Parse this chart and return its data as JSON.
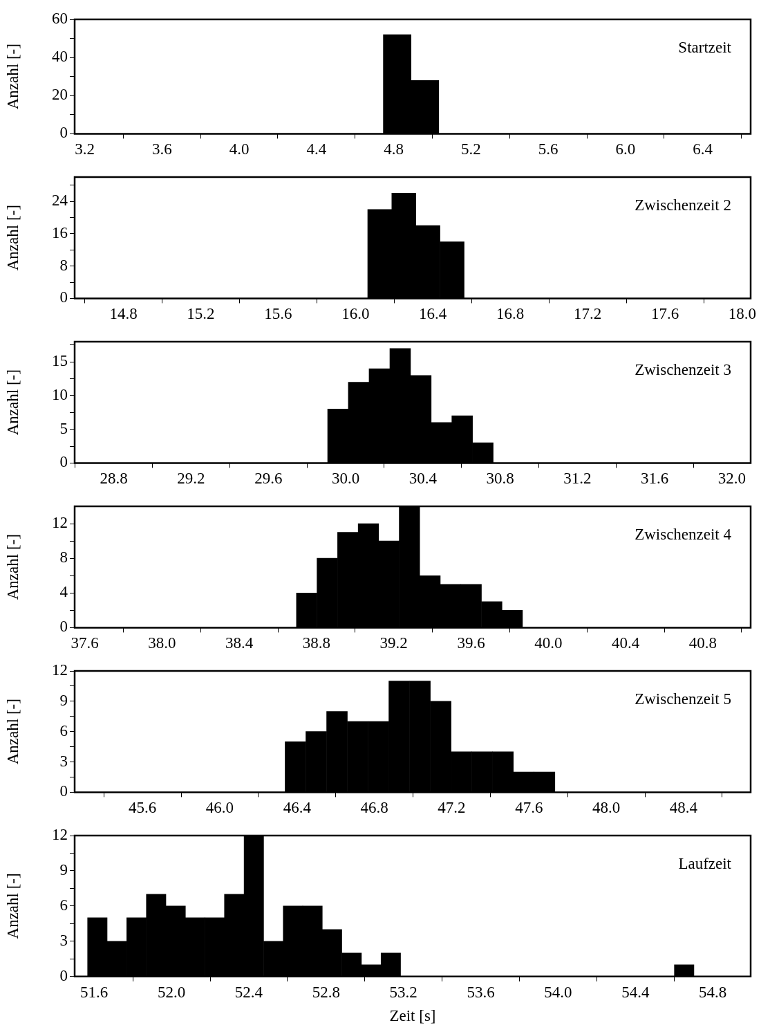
{
  "chart_data": [
    {
      "type": "histogram",
      "ylabel": "Anzahl [-]",
      "annotations": [
        "Startzeit"
      ],
      "color": "#000000",
      "bins": [
        4.746,
        4.89,
        5.033
      ],
      "values": [
        52,
        28
      ],
      "xlim": [
        3.148,
        6.648
      ],
      "xticks": [
        3.2,
        3.6,
        {
          "value": 4,
          "label": "4.0"
        },
        4.4,
        4.8,
        5.2,
        5.6,
        {
          "value": 6,
          "label": "6.0"
        },
        6.4
      ],
      "ylim": [
        0,
        60
      ],
      "yticks": [
        0,
        {
          "value": 10,
          "label": null
        },
        20,
        {
          "value": 30,
          "label": null
        },
        40,
        {
          "value": 50,
          "label": null
        },
        60
      ]
    },
    {
      "type": "histogram",
      "ylabel": "Anzahl [-]",
      "annotations": [
        "Zwischenzeit 2"
      ],
      "color": "#000000",
      "bins": [
        16.063,
        16.188,
        16.312,
        16.437,
        16.562
      ],
      "values": [
        22,
        26,
        18,
        14
      ],
      "xlim": [
        14.548,
        18.043
      ],
      "xticks": [
        14.8,
        15.2,
        15.6,
        {
          "value": 16,
          "label": "16.0"
        },
        16.4,
        16.8,
        17.2,
        17.6,
        {
          "value": 18,
          "label": "18.0"
        }
      ],
      "ylim": [
        0,
        30
      ],
      "yticks": [
        0,
        {
          "value": 4,
          "label": null
        },
        8,
        {
          "value": 12,
          "label": null
        },
        16,
        {
          "value": 20,
          "label": null
        },
        24,
        {
          "value": 28,
          "label": null
        }
      ]
    },
    {
      "type": "histogram",
      "ylabel": "Anzahl [-]",
      "annotations": [
        "Zwischenzeit 3"
      ],
      "color": "#000000",
      "bins": [
        29.907,
        30.014,
        30.121,
        30.229,
        30.336,
        30.443,
        30.55,
        30.657,
        30.764
      ],
      "values": [
        8,
        12,
        14,
        17,
        13,
        6,
        7,
        3
      ],
      "xlim": [
        28.597,
        32.097
      ],
      "xticks": [
        28.8,
        29.2,
        29.6,
        {
          "value": 30,
          "label": "30.0"
        },
        30.4,
        30.8,
        31.2,
        31.6,
        {
          "value": 32,
          "label": "32.0"
        }
      ],
      "ylim": [
        0,
        18
      ],
      "yticks": [
        0,
        {
          "value": 2.5,
          "label": null
        },
        5,
        {
          "value": 7.5,
          "label": null
        },
        10,
        {
          "value": 12.5,
          "label": null
        },
        15,
        {
          "value": 17.5,
          "label": null
        }
      ]
    },
    {
      "type": "histogram",
      "ylabel": "Anzahl [-]",
      "annotations": [
        "Zwischenzeit 4"
      ],
      "color": "#000000",
      "bins": [
        38.696,
        38.802,
        38.909,
        39.015,
        39.122,
        39.228,
        39.334,
        39.441,
        39.547,
        39.654,
        39.76,
        39.866
      ],
      "values": [
        4,
        8,
        11,
        12,
        10,
        14,
        6,
        5,
        5,
        3,
        2
      ],
      "xlim": [
        37.548,
        41.047
      ],
      "xticks": [
        37.6,
        {
          "value": 38,
          "label": "38.0"
        },
        38.4,
        38.8,
        39.2,
        39.6,
        {
          "value": 40,
          "label": "40.0"
        },
        40.4,
        40.8
      ],
      "ylim": [
        0,
        14
      ],
      "yticks": [
        0,
        {
          "value": 2,
          "label": null
        },
        4,
        {
          "value": 6,
          "label": null
        },
        8,
        {
          "value": 10,
          "label": null
        },
        12
      ]
    },
    {
      "type": "histogram",
      "ylabel": "Anzahl [-]",
      "annotations": [
        "Zwischenzeit 5"
      ],
      "color": "#000000",
      "bins": [
        46.338,
        46.445,
        46.553,
        46.66,
        46.768,
        46.875,
        46.982,
        47.09,
        47.197,
        47.304,
        47.412,
        47.519,
        47.627,
        47.734
      ],
      "values": [
        5,
        6,
        8,
        7,
        7,
        11,
        11,
        9,
        4,
        4,
        4,
        2,
        2
      ],
      "xlim": [
        45.249,
        48.747
      ],
      "xticks": [
        45.6,
        {
          "value": 46,
          "label": "46.0"
        },
        46.4,
        46.8,
        47.2,
        47.6,
        {
          "value": 48,
          "label": "48.0"
        },
        48.4
      ],
      "ylim": [
        0,
        12
      ],
      "yticks": [
        0,
        {
          "value": 1.5,
          "label": null
        },
        3,
        {
          "value": 4.5,
          "label": null
        },
        6,
        {
          "value": 7.5,
          "label": null
        },
        9,
        {
          "value": 10.5,
          "label": null
        },
        12
      ]
    },
    {
      "type": "histogram",
      "ylabel": "Anzahl [-]",
      "xlabel": "Zeit [s]",
      "annotations": [
        "Laufzeit"
      ],
      "color": "#000000",
      "bins": [
        51.566,
        51.667,
        51.768,
        51.87,
        51.971,
        52.072,
        52.173,
        52.274,
        52.375,
        52.477,
        52.578,
        52.679,
        52.78,
        52.881,
        52.983,
        53.084,
        53.185,
        53.286,
        53.387,
        53.488,
        53.59,
        53.691,
        53.792,
        53.893,
        53.994,
        54.095,
        54.197,
        54.298,
        54.399,
        54.5,
        54.601,
        54.703
      ],
      "values": [
        5,
        3,
        5,
        7,
        6,
        5,
        5,
        7,
        12,
        3,
        6,
        6,
        4,
        2,
        1,
        2,
        0,
        0,
        0,
        0,
        0,
        0,
        0,
        0,
        0,
        0,
        0,
        0,
        0,
        0,
        1
      ],
      "xlim": [
        51.499,
        54.996
      ],
      "xticks": [
        51.6,
        {
          "value": 52,
          "label": "52.0"
        },
        52.4,
        52.8,
        53.2,
        53.6,
        {
          "value": 54,
          "label": "54.0"
        },
        54.4,
        54.8
      ],
      "ylim": [
        0,
        12
      ],
      "yticks": [
        0,
        {
          "value": 1.5,
          "label": null
        },
        3,
        {
          "value": 4.5,
          "label": null
        },
        6,
        {
          "value": 7.5,
          "label": null
        },
        9,
        {
          "value": 10.5,
          "label": null
        },
        12
      ]
    }
  ]
}
